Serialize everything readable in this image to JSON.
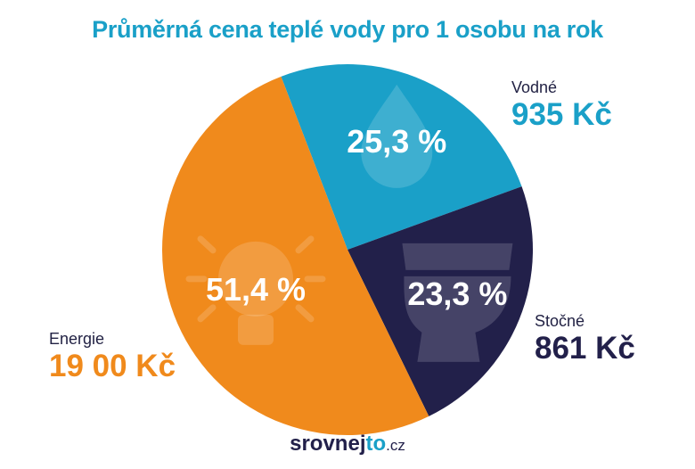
{
  "title": "Průměrná cena teplé vody pro 1 osobu na rok",
  "chart_data": {
    "type": "pie",
    "slices": [
      {
        "name": "Vodné",
        "percent_label": "25,3 %",
        "value": 25.3,
        "amount": "935 Kč",
        "color": "#1aa0c8",
        "icon": "water-drop-icon"
      },
      {
        "name": "Stočné",
        "percent_label": "23,3 %",
        "value": 23.3,
        "amount": "861 Kč",
        "color": "#22204a",
        "icon": "toilet-icon"
      },
      {
        "name": "Energie",
        "percent_label": "51,4 %",
        "value": 51.4,
        "amount": "19 00 Kč",
        "color": "#f08a1c",
        "icon": "light-bulb-icon"
      }
    ]
  },
  "legend": {
    "vodne": {
      "name": "Vodné",
      "amount": "935 Kč"
    },
    "stocne": {
      "name": "Stočné",
      "amount": "861 Kč"
    },
    "energie": {
      "name": "Energie",
      "amount": "19 00 Kč"
    }
  },
  "brand": {
    "part1": "srovnej",
    "part2": "to",
    "tld": ".cz"
  }
}
